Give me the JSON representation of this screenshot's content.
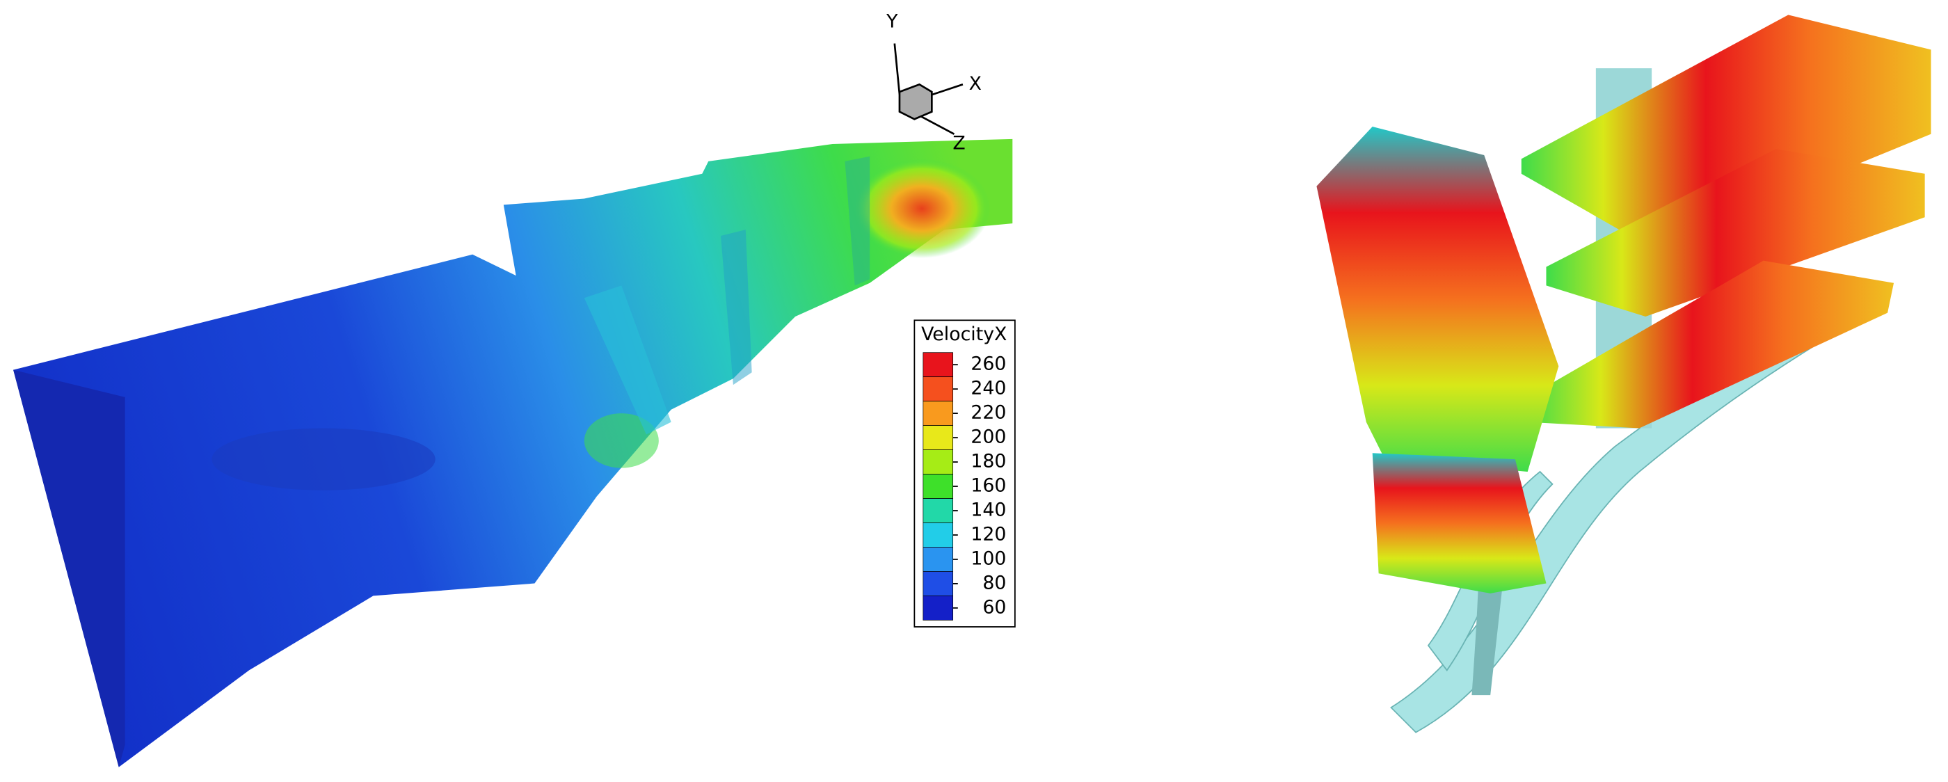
{
  "axes": {
    "x": "X",
    "y": "Y",
    "z": "Z"
  },
  "legend": {
    "title": "VelocityX",
    "levels": [
      260,
      240,
      220,
      200,
      180,
      160,
      140,
      120,
      100,
      80,
      60
    ],
    "colors": [
      "#e8141c",
      "#f5501e",
      "#f99a1e",
      "#e8e81a",
      "#a6ec16",
      "#3ee02a",
      "#22d8a8",
      "#22cde8",
      "#2a94f0",
      "#1f4ee6",
      "#1420c8"
    ]
  }
}
